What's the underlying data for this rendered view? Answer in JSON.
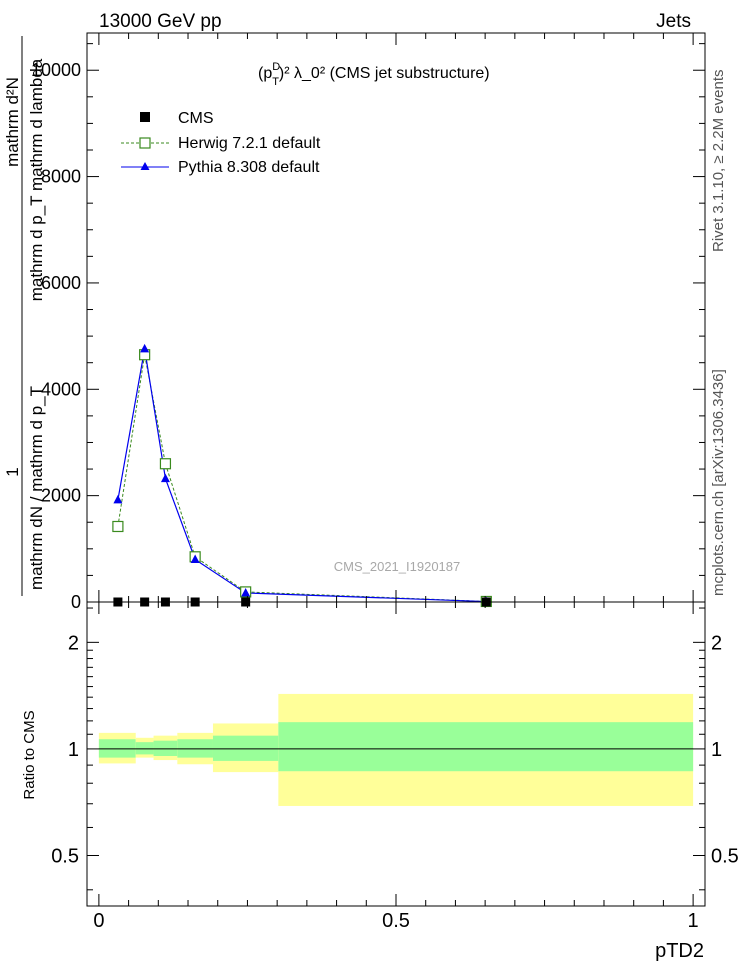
{
  "header": {
    "left": "13000 GeV pp",
    "right": "Jets"
  },
  "side_labels": {
    "rivet": "Rivet 3.1.10, ≥ 2.2M events",
    "mcplots": "mcplots.cern.ch [arXiv:1306.3436]"
  },
  "watermark": "CMS_2021_I1920187",
  "title": {
    "p": "(p",
    "sup_d": "D",
    "sub_t": "T",
    "rest": ")² λ_0² (CMS jet substructure)"
  },
  "ylabel_main": {
    "numer": "1",
    "line1": "mathrm d²N",
    "line2": "mathrm d p_T mathrm d lambda",
    "denom": "mathrm dN / mathrm d p_T"
  },
  "ylabel_ratio": "Ratio to CMS",
  "xlabel": "pTD2",
  "legend": [
    {
      "label": "CMS",
      "marker": "filled-square",
      "color": "#000000"
    },
    {
      "label": "Herwig 7.2.1 default",
      "marker": "open-square-dashed",
      "color": "#3a8a1e"
    },
    {
      "label": "Pythia 8.308 default",
      "marker": "filled-triangle",
      "color": "#0000ee"
    }
  ],
  "chart_data": {
    "type": "line",
    "main": {
      "x": [
        0.032,
        0.077,
        0.112,
        0.162,
        0.247,
        0.652
      ],
      "series": [
        {
          "name": "CMS",
          "values": [
            0,
            0,
            0,
            0,
            0,
            0
          ]
        },
        {
          "name": "Herwig 7.2.1 default",
          "values": [
            1420,
            4650,
            2600,
            850,
            190,
            10
          ]
        },
        {
          "name": "Pythia 8.308 default",
          "values": [
            1920,
            4760,
            2320,
            800,
            170,
            8
          ]
        }
      ],
      "xlim": [
        -0.02,
        1.02
      ],
      "ylim": [
        0,
        10700
      ],
      "yticks": [
        0,
        2000,
        4000,
        6000,
        8000,
        10000
      ]
    },
    "ratio": {
      "reference": 1,
      "bins": [
        {
          "xlo": 0.0,
          "xhi": 0.062,
          "inner": [
            0.945,
            1.065
          ],
          "outer": [
            0.91,
            1.11
          ]
        },
        {
          "xlo": 0.062,
          "xhi": 0.092,
          "inner": [
            0.965,
            1.045
          ],
          "outer": [
            0.945,
            1.075
          ]
        },
        {
          "xlo": 0.092,
          "xhi": 0.132,
          "inner": [
            0.955,
            1.055
          ],
          "outer": [
            0.93,
            1.09
          ]
        },
        {
          "xlo": 0.132,
          "xhi": 0.192,
          "inner": [
            0.945,
            1.065
          ],
          "outer": [
            0.905,
            1.11
          ]
        },
        {
          "xlo": 0.192,
          "xhi": 0.302,
          "inner": [
            0.925,
            1.09
          ],
          "outer": [
            0.86,
            1.18
          ]
        },
        {
          "xlo": 0.302,
          "xhi": 1.0,
          "inner": [
            0.865,
            1.19
          ],
          "outer": [
            0.69,
            1.43
          ]
        }
      ],
      "xlim": [
        -0.02,
        1.02
      ],
      "ylim": [
        0.36,
        2.6
      ],
      "ytick_labels": [
        "0.5",
        "1",
        "2"
      ],
      "xtick_labels": [
        "0",
        "0.5",
        "1"
      ]
    },
    "colors": {
      "inner_band": "#99ff99",
      "outer_band": "#ffff99"
    }
  }
}
